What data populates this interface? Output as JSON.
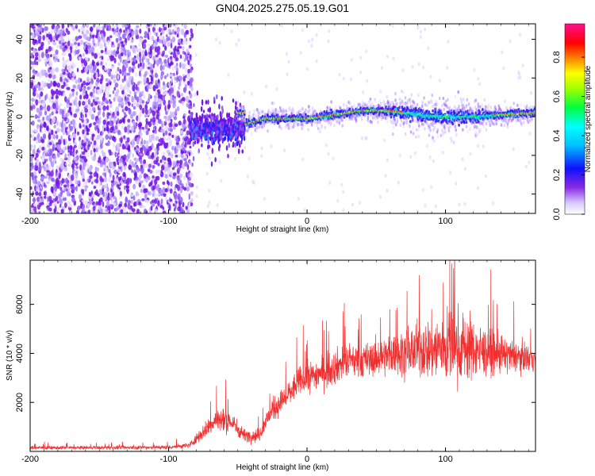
{
  "title": "GN04.2025.275.05.19.G01",
  "colors": {
    "snr_line": "#f03030",
    "ridge": "#ff3030",
    "noise": "#7a1ee6",
    "background": "#ffffff"
  },
  "chart_data": [
    {
      "type": "heatmap",
      "title": "GN04.2025.275.05.19.G01",
      "xlabel": "Height of straight line (km)",
      "ylabel": "Frequency (Hz)",
      "xlim": [
        -200,
        165
      ],
      "ylim": [
        -50,
        48
      ],
      "xticks": [
        -200,
        -100,
        0,
        100
      ],
      "yticks": [
        -40,
        -20,
        0,
        20,
        40
      ],
      "colorbar": {
        "label": "Normalized spectral amplitude",
        "range": [
          0.0,
          0.97
        ],
        "ticks": [
          0.0,
          0.2,
          0.4,
          0.6,
          0.8
        ],
        "colormap": "rainbow (white-violet-blue-cyan-green-yellow-red-magenta)"
      },
      "features": {
        "noise_region_x": [
          -200,
          -85
        ],
        "transition_region_x": [
          -85,
          -45
        ],
        "ridge": [
          {
            "x": -45,
            "y": -4
          },
          {
            "x": -30,
            "y": -1
          },
          {
            "x": -10,
            "y": -1
          },
          {
            "x": 0,
            "y": -1
          },
          {
            "x": 20,
            "y": 1
          },
          {
            "x": 40,
            "y": 3
          },
          {
            "x": 60,
            "y": 3
          },
          {
            "x": 80,
            "y": 1
          },
          {
            "x": 100,
            "y": 0
          },
          {
            "x": 120,
            "y": 0
          },
          {
            "x": 140,
            "y": 1
          },
          {
            "x": 165,
            "y": 2
          }
        ]
      }
    },
    {
      "type": "line",
      "xlabel": "Height of straight line (km)",
      "ylabel": "SNR (10 * v/v)",
      "xlim": [
        -200,
        165
      ],
      "ylim": [
        0,
        7800
      ],
      "xticks": [
        -200,
        -100,
        0,
        100
      ],
      "yticks": [
        2000,
        4000,
        6000
      ],
      "series": [
        {
          "x": [
            -200,
            -150,
            -100,
            -85,
            -75,
            -65,
            -55,
            -45,
            -35,
            -25,
            -15,
            -5,
            5,
            15,
            25,
            35,
            45,
            55,
            65,
            75,
            85,
            95,
            105,
            115,
            125,
            135,
            145,
            155,
            165
          ],
          "values": [
            150,
            150,
            170,
            250,
            800,
            1300,
            1200,
            650,
            650,
            1700,
            2200,
            2900,
            3100,
            3300,
            3600,
            3700,
            3700,
            3900,
            4000,
            4100,
            4150,
            4200,
            4300,
            4250,
            4100,
            4000,
            3900,
            3850,
            3800
          ],
          "spread": [
            120,
            120,
            140,
            200,
            500,
            900,
            800,
            400,
            500,
            800,
            900,
            1000,
            1100,
            1200,
            1200,
            1200,
            1200,
            1300,
            1500,
            1700,
            2000,
            2500,
            2700,
            2400,
            1800,
            1500,
            1200,
            1000,
            900
          ]
        }
      ]
    }
  ]
}
